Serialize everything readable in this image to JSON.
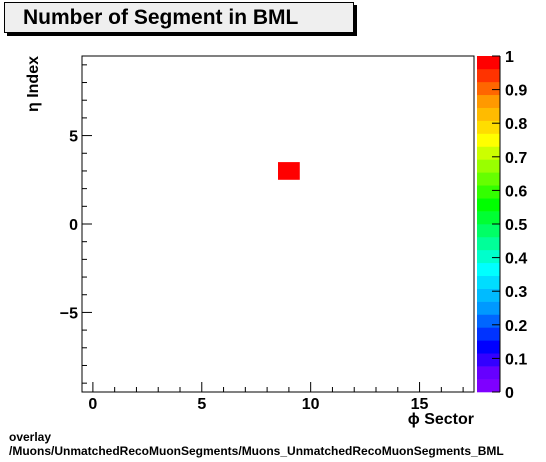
{
  "chart_data": {
    "type": "heatmap",
    "title": "Number of Segment in BML",
    "xlabel": "ϕ Sector",
    "ylabel": "η Index",
    "xlim": [
      -0.5,
      17.5
    ],
    "ylim": [
      -9.5,
      9.5
    ],
    "x_ticks": [
      0,
      5,
      10,
      15
    ],
    "y_ticks": [
      -5,
      0,
      5
    ],
    "x_tick_labels": [
      "0",
      "5",
      "10",
      "15"
    ],
    "y_tick_labels": [
      "−5",
      "0",
      "5"
    ],
    "cells": [
      {
        "x": 9,
        "y": 3,
        "value": 1
      }
    ],
    "colorbar": {
      "range": [
        0,
        1
      ],
      "tick_labels": [
        "0",
        "0.1",
        "0.2",
        "0.3",
        "0.4",
        "0.5",
        "0.6",
        "0.7",
        "0.8",
        "0.9",
        "1"
      ],
      "palette": [
        "#7f00ff",
        "#6600ff",
        "#3300ff",
        "#0000ff",
        "#0033ff",
        "#0066ff",
        "#0099ff",
        "#00bbff",
        "#00ddff",
        "#00ffff",
        "#00ffcc",
        "#00ff99",
        "#00ff66",
        "#00ff33",
        "#00ff00",
        "#33ff00",
        "#66ff00",
        "#99ff00",
        "#ccff00",
        "#ffff00",
        "#ffdd00",
        "#ffbb00",
        "#ff9900",
        "#ff6600",
        "#ff3300",
        "#ff0000"
      ],
      "grid": "off"
    }
  },
  "footer": {
    "line1": "overlay",
    "line2": "/Muons/UnmatchedRecoMuonSegments/Muons_UnmatchedRecoMuonSegments_BML"
  }
}
